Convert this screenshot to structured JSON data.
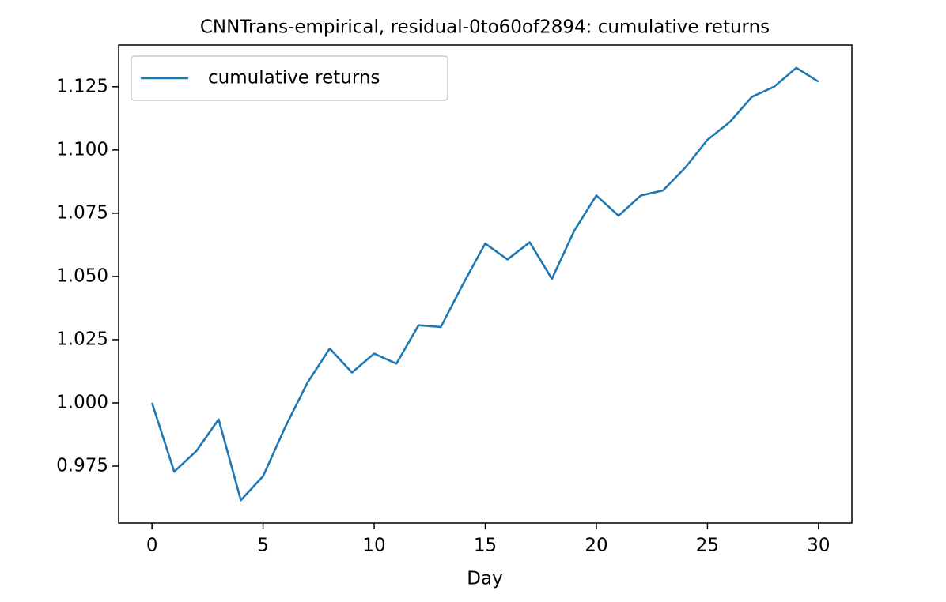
{
  "chart_data": {
    "type": "line",
    "title": "CNNTrans-empirical, residual-0to60of2894: cumulative returns",
    "x_label": "Day",
    "x": [
      0,
      1,
      2,
      3,
      4,
      5,
      6,
      7,
      8,
      9,
      10,
      11,
      12,
      13,
      14,
      15,
      16,
      17,
      18,
      19,
      20,
      21,
      22,
      23,
      24,
      25,
      26,
      27,
      28,
      29,
      30
    ],
    "series": [
      {
        "name": "cumulative returns",
        "color": "#1f77b4",
        "values": [
          1.0,
          0.9728,
          0.981,
          0.9935,
          0.9615,
          0.971,
          0.9905,
          1.008,
          1.0215,
          1.012,
          1.0195,
          1.0155,
          1.0307,
          1.03,
          1.047,
          1.063,
          1.0567,
          1.0635,
          1.049,
          1.068,
          1.082,
          1.074,
          1.082,
          1.084,
          1.093,
          1.104,
          1.111,
          1.121,
          1.125,
          1.1325,
          1.127
        ]
      }
    ],
    "xlim": [
      -1.5,
      31.5
    ],
    "xticks": [
      0,
      5,
      10,
      15,
      20,
      25,
      30
    ],
    "ylim": [
      0.9525,
      1.1415
    ],
    "yticks": [
      0.975,
      {
        "value": 1,
        "label": "1.000"
      },
      1.025,
      {
        "value": 1.05,
        "label": "1.050"
      },
      1.075,
      {
        "value": 1.1,
        "label": "1.100"
      },
      1.125
    ],
    "legend": "upper left",
    "grid": false
  }
}
